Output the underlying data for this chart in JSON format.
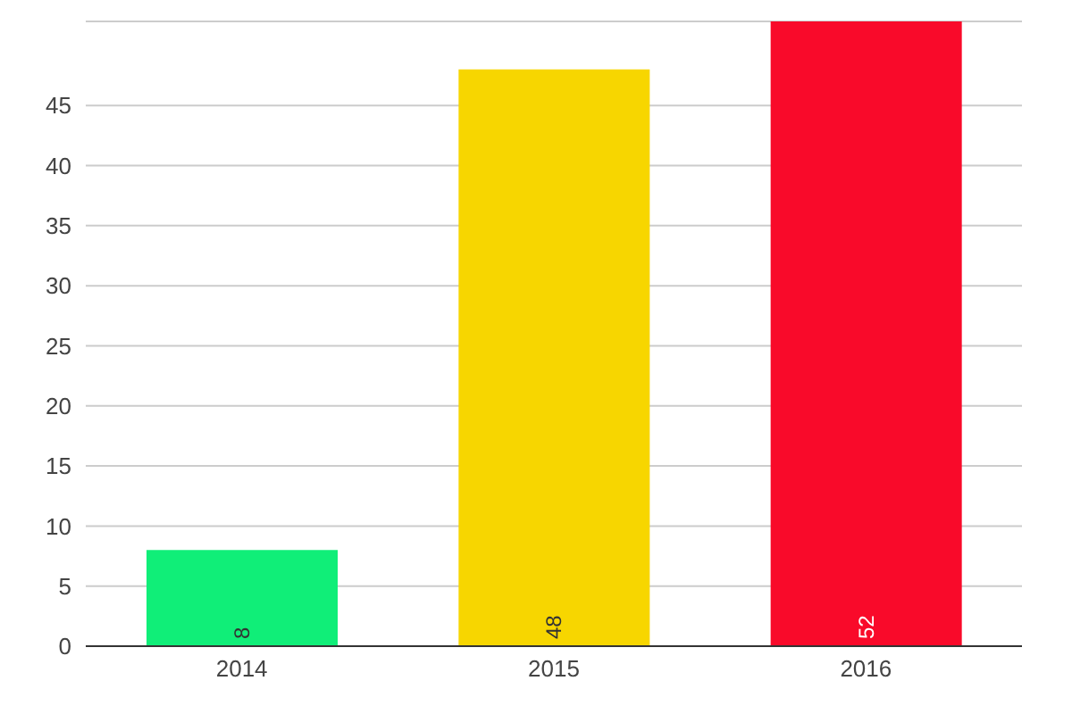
{
  "chart_data": {
    "type": "bar",
    "categories": [
      "2014",
      "2015",
      "2016"
    ],
    "values": [
      8,
      48,
      52
    ],
    "colors": [
      "#10ee78",
      "#f7d600",
      "#f90a2a"
    ],
    "ylim": [
      0,
      52
    ],
    "yticks": [
      0,
      5,
      10,
      15,
      20,
      25,
      30,
      35,
      40,
      45
    ],
    "grid": "y",
    "data_labels": true
  }
}
